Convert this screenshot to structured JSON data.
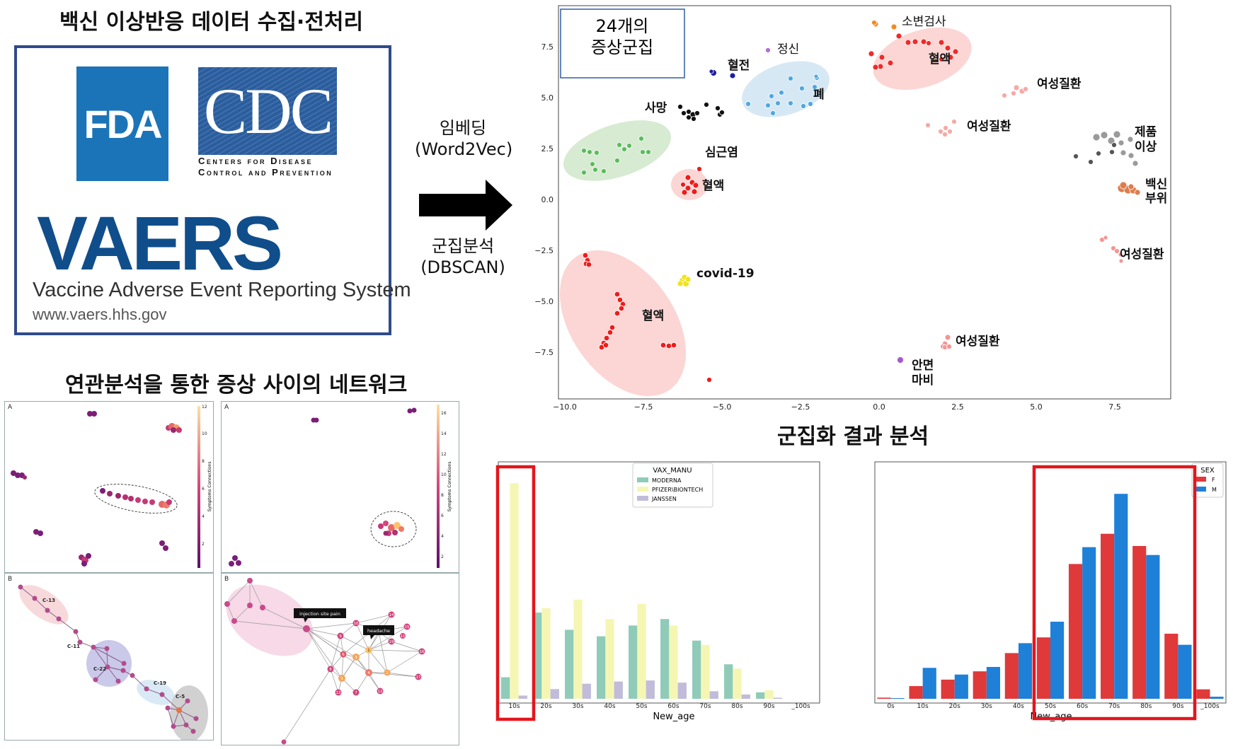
{
  "headings": {
    "collection": "백신 이상반응 데이터 수집·전처리",
    "network": "연관분석을 통한 증상 사이의 네트워크",
    "cluster_result": "군집화 결과 분석"
  },
  "logos": {
    "fda": "FDA",
    "cdc": "CDC",
    "cdc_line1": "Centers for Disease",
    "cdc_line2": "Control and Prevention",
    "vaers": "VAERS",
    "vaers_full": "Vaccine Adverse Event Reporting System",
    "vaers_url": "www.vaers.hhs.gov"
  },
  "process": {
    "embedding": "임베딩",
    "embedding_method": "(Word2Vec)",
    "clustering": "군집분석",
    "clustering_method": "(DBSCAN)"
  },
  "colors": {
    "box_border": "#2f4b8a",
    "highlight_red": "#e3161d",
    "moderna": "#8fcbb8",
    "pfizer": "#f6f6b4",
    "janssen": "#c1bcd9",
    "female": "#e0393a",
    "male": "#1f80d8"
  },
  "scatter": {
    "cluster_count_line1": "24개의",
    "cluster_count_line2": "증상군집",
    "x_ticks": [
      "−10.0",
      "−7.5",
      "−5.0",
      "−2.5",
      "0.0",
      "2.5",
      "5.0",
      "7.5"
    ],
    "y_ticks": [
      "7.5",
      "5.0",
      "2.5",
      "0.0",
      "−2.5",
      "−5.0",
      "−7.5"
    ],
    "labels": {
      "urine": "소변검사",
      "mental": "정신",
      "blood_top": "혈액",
      "thrombus": "혈전",
      "female_1": "여성질환",
      "death": "사망",
      "lung": "폐",
      "female_2": "여성질환",
      "product_1": "제품",
      "product_2": "이상",
      "myocarditis": "심근염",
      "blood_mid": "혈액",
      "vaccine_1": "백신",
      "vaccine_2": "부위",
      "female_3": "여성질환",
      "covid": "covid-19",
      "blood_low": "혈액",
      "female_4": "여성질환",
      "facial_1": "안면",
      "facial_2": "마비"
    }
  },
  "network": {
    "panel_a": "A",
    "panel_b": "B",
    "colorbar_label": "Symptoms Connections",
    "colorbar_left_ticks": [
      "12",
      "10",
      "8",
      "6",
      "4",
      "2"
    ],
    "colorbar_right_ticks": [
      "16",
      "14",
      "12",
      "10",
      "8",
      "6",
      "4",
      "2"
    ],
    "cluster_labels": [
      "C-13",
      "C-11",
      "C-22",
      "C-19",
      "C-5"
    ],
    "tooltip_1": "injection site pain",
    "tooltip_2": "headache",
    "node_numbers": [
      "14",
      "10",
      "15",
      "18",
      "9",
      "19",
      "3",
      "1",
      "16",
      "6",
      "4",
      "2",
      "5",
      "12",
      "17",
      "8",
      "7",
      "13",
      "11"
    ]
  },
  "chart_data": [
    {
      "type": "bar",
      "xlabel": "New_age",
      "legend_title": "VAX_MANU",
      "legend_position": "top-center",
      "categories": [
        "10s",
        "20s",
        "30s",
        "40s",
        "50s",
        "60s",
        "70s",
        "80s",
        "90s",
        "_100s"
      ],
      "series": [
        {
          "name": "MODERNA",
          "values": [
            10,
            40,
            32,
            29,
            34,
            37,
            27,
            16,
            3,
            0
          ]
        },
        {
          "name": "PFIZER\\BIONTECH",
          "values": [
            100,
            42,
            46,
            37,
            44,
            34,
            25,
            14,
            4,
            0
          ]
        },
        {
          "name": "JANSSEN",
          "values": [
            1.5,
            4.5,
            7,
            8,
            8.5,
            7.5,
            3.5,
            2,
            0.5,
            0
          ]
        }
      ],
      "ylim": [
        0,
        105
      ]
    },
    {
      "type": "bar",
      "xlabel": "New_age",
      "legend_title": "SEX",
      "legend_position": "top-right",
      "categories": [
        "0s",
        "10s",
        "20s",
        "30s",
        "40s",
        "50s",
        "60s",
        "70s",
        "80s",
        "90s",
        "_100s"
      ],
      "series": [
        {
          "name": "F",
          "values": [
            0.5,
            5.5,
            8.3,
            11.9,
            19.8,
            26.6,
            58.4,
            71.5,
            66.2,
            28.2,
            4.1
          ]
        },
        {
          "name": "M",
          "values": [
            0.3,
            13.4,
            10.5,
            13.8,
            24.1,
            33.4,
            65.7,
            88.8,
            62.3,
            23.4,
            0.9
          ]
        }
      ],
      "ylim": [
        0,
        95
      ]
    }
  ]
}
